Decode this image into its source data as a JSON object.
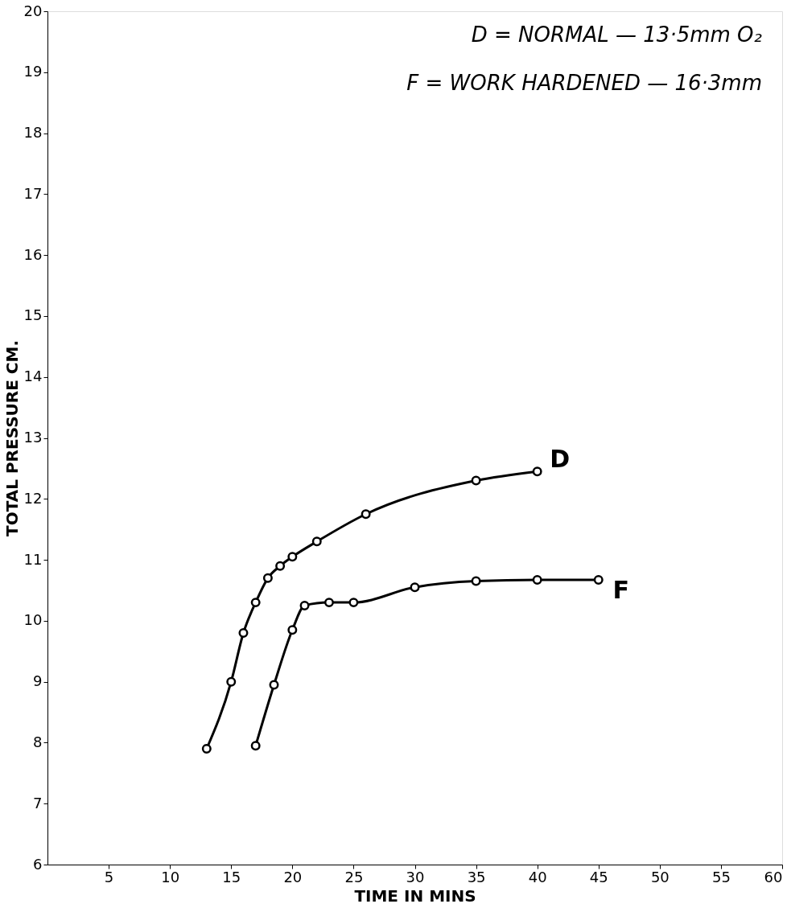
{
  "chart_data": {
    "type": "line",
    "xlabel": "TIME IN MINS",
    "ylabel": "TOTAL PRESSURE CM.",
    "annotations": [
      "D = NORMAL — 13·5mm O₂",
      "F = WORK HARDENED — 16·3mm"
    ],
    "series": [
      {
        "name": "D",
        "color": "#000000",
        "x": [
          13,
          15,
          16,
          17,
          18,
          19,
          20,
          22,
          26,
          35,
          40
        ],
        "values": [
          7.9,
          9.0,
          9.8,
          10.3,
          10.7,
          10.9,
          11.05,
          11.3,
          11.75,
          12.3,
          12.45
        ]
      },
      {
        "name": "F",
        "color": "#000000",
        "x": [
          17,
          18.5,
          20,
          21,
          23,
          25,
          30,
          35,
          40,
          45
        ],
        "values": [
          7.95,
          8.95,
          9.85,
          10.25,
          10.3,
          10.3,
          10.55,
          10.65,
          10.67,
          10.67
        ]
      }
    ],
    "xlim": [
      0,
      60
    ],
    "xticks": [
      5,
      10,
      15,
      20,
      25,
      30,
      35,
      40,
      45,
      50,
      55,
      60
    ],
    "ylim": [
      6,
      20
    ],
    "yticks": [
      6,
      7,
      8,
      9,
      10,
      11,
      12,
      13,
      14,
      15,
      16,
      17,
      18,
      19,
      20
    ],
    "grid": false,
    "marker": "circle",
    "line_style": "solid"
  }
}
